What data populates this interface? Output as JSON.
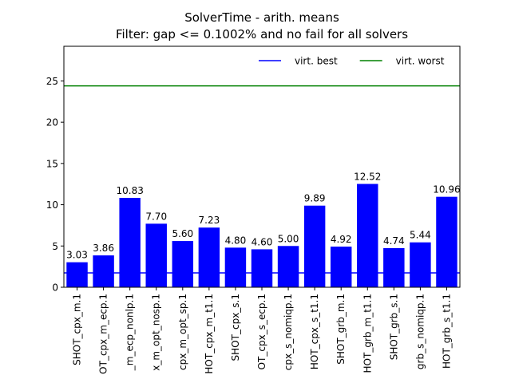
{
  "chart_data": {
    "type": "bar",
    "title": "SolverTime - arith. means",
    "subtitle": "Filter: gap <= 0.1002% and no fail for all solvers",
    "categories": [
      "SHOT_cpx_m.1",
      "OT_cpx_m_ecp.1",
      "_m_ecp_nonlp.1",
      "x_m_opt_nosp.1",
      "cpx_m_opt_sp.1",
      "HOT_cpx_m_t1.1",
      "SHOT_cpx_s.1",
      "OT_cpx_s_ecp.1",
      "cpx_s_nomiqp.1",
      "HOT_cpx_s_t1.1",
      "SHOT_grb_m.1",
      "HOT_grb_m_t1.1",
      "SHOT_grb_s.1",
      "grb_s_nomiqp.1",
      "HOT_grb_s_t1.1"
    ],
    "values": [
      3.03,
      3.86,
      10.83,
      7.7,
      5.6,
      7.23,
      4.8,
      4.6,
      5,
      9.89,
      4.92,
      12.52,
      4.74,
      5.44,
      10.96
    ],
    "value_labels": [
      "3.03",
      "3.86",
      "10.83",
      "7.70",
      "5.60",
      "7.23",
      "4.80",
      "4.60",
      "5.00",
      "9.89",
      "4.92",
      "12.52",
      "4.74",
      "5.44",
      "10.96"
    ],
    "color": "#0000ff",
    "ylim": [
      0,
      29.2
    ],
    "yticks": [
      0,
      5,
      10,
      15,
      20,
      25
    ],
    "reference_lines": [
      {
        "name": "virt. best",
        "color": "#0000ff",
        "value": 1.74
      },
      {
        "name": "virt. worst",
        "color": "#008000",
        "value": 24.4
      }
    ],
    "legend": "upper right"
  }
}
